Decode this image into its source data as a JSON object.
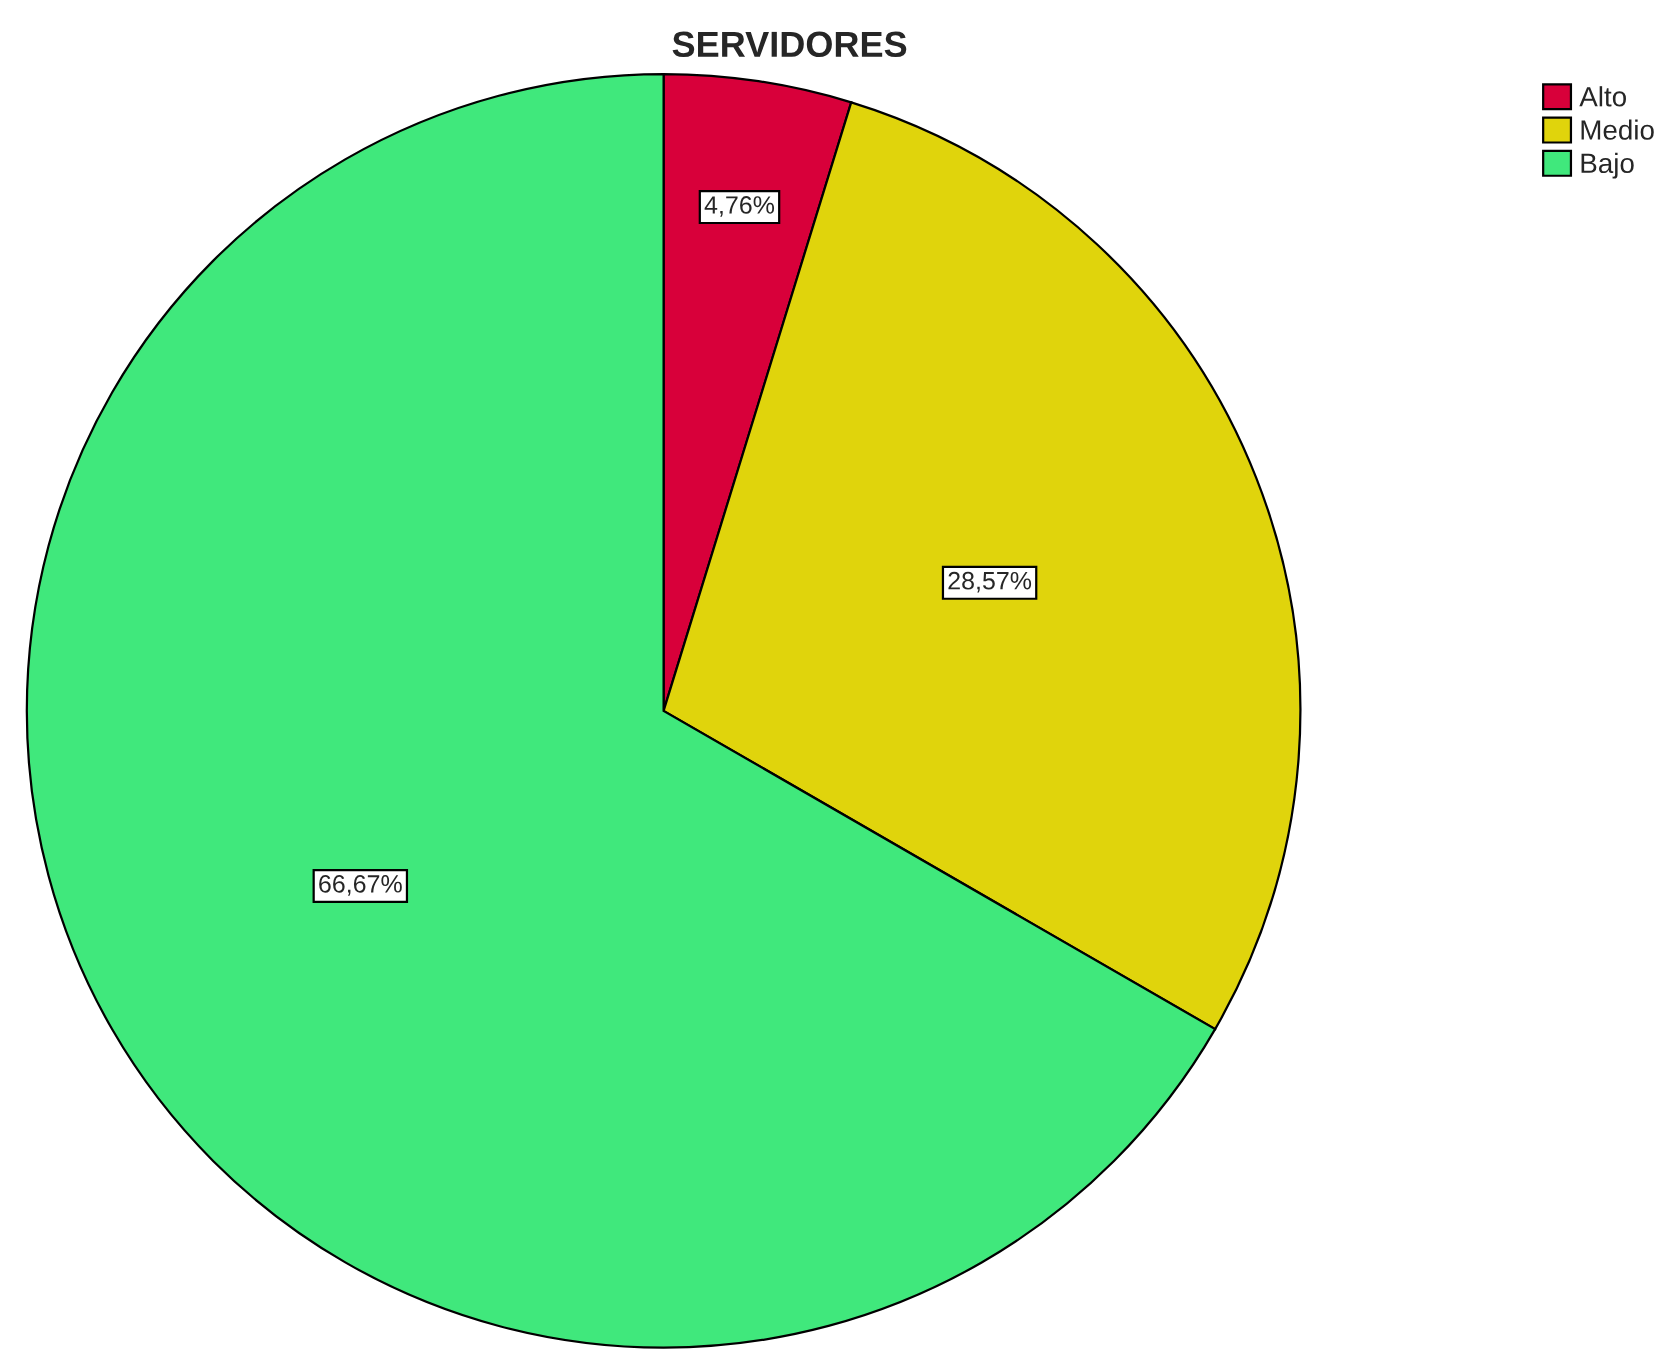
{
  "chart_data": {
    "type": "pie",
    "title": "SERVIDORES",
    "categories": [
      "Alto",
      "Medio",
      "Bajo"
    ],
    "values": [
      4.76,
      28.57,
      66.67
    ],
    "value_labels": [
      "4,76%",
      "28,57%",
      "66,67%"
    ],
    "colors": [
      "#d8003a",
      "#e0d40c",
      "#40e87c"
    ],
    "legend": "top right"
  }
}
